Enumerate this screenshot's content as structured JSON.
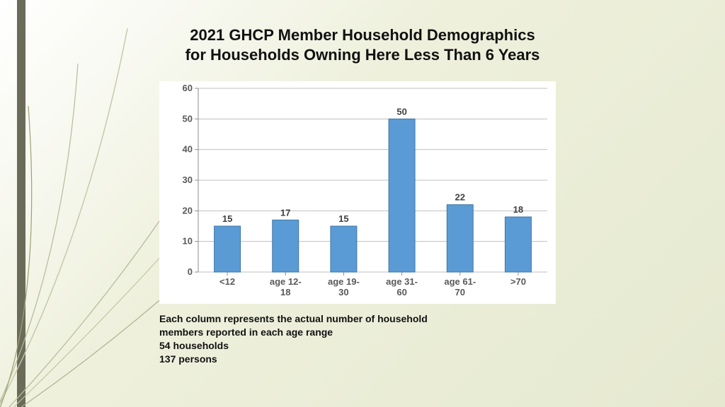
{
  "title_line1": "2021 GHCP Member Household Demographics",
  "title_line2": "for Households  Owning Here Less Than 6 Years",
  "title_fontsize": 22,
  "caption_line1": "Each column represents the  actual number of household",
  "caption_line2": "members reported in each age range",
  "caption_line3": "54 households",
  "caption_line4": "137 persons",
  "chart": {
    "type": "bar",
    "categories": [
      "<12",
      "age 12-18",
      "age 19-30",
      "age 31-60",
      "age 61-70",
      ">70"
    ],
    "values": [
      15,
      17,
      15,
      50,
      22,
      18
    ],
    "bar_fill": "#5b9bd5",
    "bar_stroke": "#3f76a5",
    "ylim": [
      0,
      60
    ],
    "ytick_step": 10,
    "grid_color": "#bfbfbf",
    "axis_color": "#8c8c8c",
    "background": "#ffffff",
    "tick_fontsize": 13,
    "tick_fontweight": 700,
    "bar_label_fontsize": 13,
    "bar_width_ratio": 0.45
  },
  "slide_bg_start": "#ffffff",
  "slide_bg_end": "#e6e9d0",
  "left_band_color": "#6b6b5a",
  "grass_stroke1": "#b7ba98",
  "grass_stroke2": "#9ea072"
}
